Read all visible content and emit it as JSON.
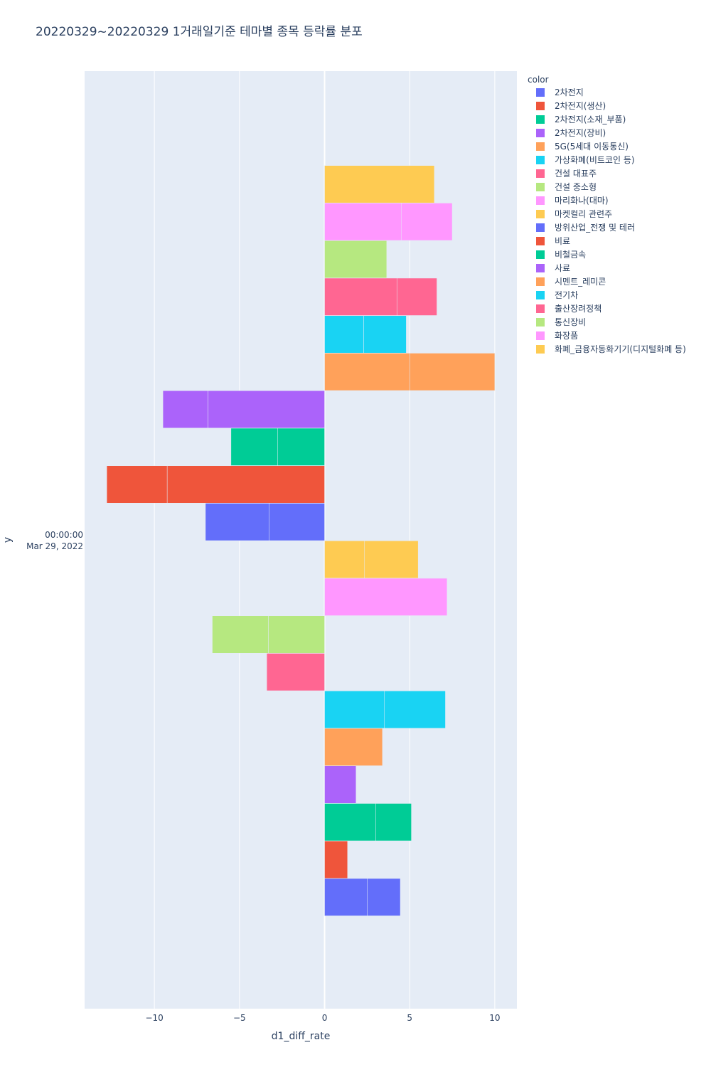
{
  "chart_data": {
    "type": "bar",
    "orientation": "horizontal",
    "barmode": "stack",
    "title": "20220329~20220329 1거래일기준 테마별 종목 등락률 분포",
    "xlabel": "d1_diff_rate",
    "ylabel": "y",
    "y_category_lines": [
      "00:00:00",
      "Mar 29, 2022"
    ],
    "xlim": [
      -14.1,
      11.3
    ],
    "x_ticks": [
      {
        "value": -10,
        "label": "−10"
      },
      {
        "value": -5,
        "label": "−5"
      },
      {
        "value": 0,
        "label": "0"
      },
      {
        "value": 5,
        "label": "5"
      },
      {
        "value": 10,
        "label": "10"
      }
    ],
    "legend_title": "color",
    "legend_position": "top-right",
    "series": [
      {
        "name": "2차전지",
        "color": "#636efa",
        "segments": [
          2.5,
          1.95
        ]
      },
      {
        "name": "2차전지(생산)",
        "color": "#EF553B",
        "segments": [
          1.35
        ]
      },
      {
        "name": "2차전지(소재_부품)",
        "color": "#00cc96",
        "segments": [
          3.0,
          2.1
        ]
      },
      {
        "name": "2차전지(장비)",
        "color": "#ab63fa",
        "segments": [
          1.85
        ]
      },
      {
        "name": "5G(5세대 이동통신)",
        "color": "#FFA15A",
        "segments": [
          3.4
        ]
      },
      {
        "name": "가상화폐(비트코인 등)",
        "color": "#19d3f3",
        "segments": [
          3.5,
          3.6
        ]
      },
      {
        "name": "건설 대표주",
        "color": "#FF6692",
        "segments": [
          -3.4
        ]
      },
      {
        "name": "건설 중소형",
        "color": "#B6E880",
        "segments": [
          -3.3,
          -3.3
        ]
      },
      {
        "name": "마리화나(대마)",
        "color": "#FF97FF",
        "segments": [
          7.2
        ]
      },
      {
        "name": "마켓컬리 관련주",
        "color": "#FECB52",
        "segments": [
          2.35,
          3.15
        ]
      },
      {
        "name": "방위산업_전쟁 및 테러",
        "color": "#636efa",
        "segments": [
          -3.25,
          -3.75
        ]
      },
      {
        "name": "비료",
        "color": "#EF553B",
        "segments": [
          -9.25,
          -3.55
        ]
      },
      {
        "name": "비철금속",
        "color": "#00cc96",
        "segments": [
          -2.75,
          -2.75
        ]
      },
      {
        "name": "사료",
        "color": "#ab63fa",
        "segments": [
          -6.85,
          -2.65
        ]
      },
      {
        "name": "시멘트_레미콘",
        "color": "#FFA15A",
        "segments": [
          5.0,
          5.0
        ]
      },
      {
        "name": "전기차",
        "color": "#19d3f3",
        "segments": [
          2.3,
          2.5
        ]
      },
      {
        "name": "출산장려정책",
        "color": "#FF6692",
        "segments": [
          4.25,
          2.35
        ]
      },
      {
        "name": "통신장비",
        "color": "#B6E880",
        "segments": [
          3.65
        ]
      },
      {
        "name": "화장품",
        "color": "#FF97FF",
        "segments": [
          4.5,
          3.0
        ]
      },
      {
        "name": "화폐_금융자동화기기(디지털화폐 등)",
        "color": "#FECB52",
        "segments": [
          6.45
        ]
      }
    ]
  }
}
